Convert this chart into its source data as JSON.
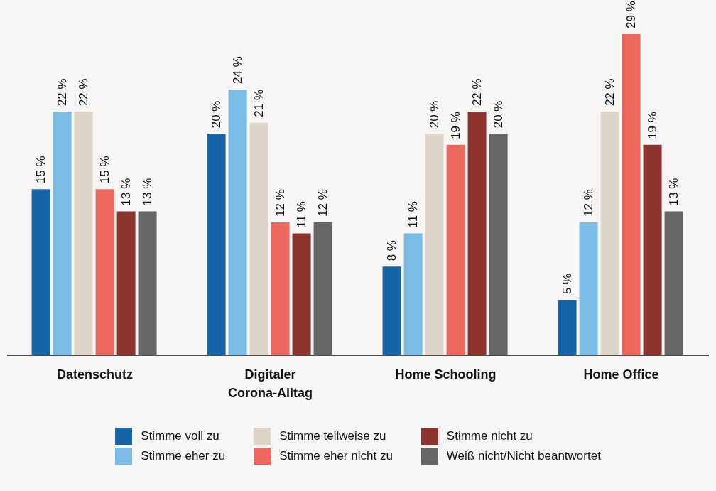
{
  "chart_data": {
    "type": "bar",
    "categories": [
      "Datenschutz",
      "Digitaler Corona-Alltag",
      "Home Schooling",
      "Home Office"
    ],
    "series": [
      {
        "name": "Stimme voll zu",
        "color": "#1565a8",
        "values": [
          15,
          20,
          8,
          5
        ],
        "value_labels": [
          "15 %",
          "20 %",
          "8 %",
          "5 %"
        ]
      },
      {
        "name": "Stimme eher zu",
        "color": "#7bbce6",
        "values": [
          22,
          24,
          11,
          12
        ],
        "value_labels": [
          "22 %",
          "24 %",
          "11 %",
          "12 %"
        ]
      },
      {
        "name": "Stimme teilweise zu",
        "color": "#ddd5c9",
        "values": [
          22,
          21,
          20,
          22
        ],
        "value_labels": [
          "22 %",
          "21 %",
          "20 %",
          "22 %"
        ]
      },
      {
        "name": "Stimme eher nicht zu",
        "color": "#ec675d",
        "values": [
          15,
          12,
          19,
          29
        ],
        "value_labels": [
          "15 %",
          "12 %",
          "19 %",
          "29 %"
        ]
      },
      {
        "name": "Stimme nicht zu",
        "color": "#8e3430",
        "values": [
          13,
          11,
          22,
          19
        ],
        "value_labels": [
          "13 %",
          "11 %",
          "22 %",
          "19 %"
        ]
      },
      {
        "name": "Weiß nicht/Nicht beantwortet",
        "color": "#666666",
        "values": [
          13,
          12,
          20,
          13
        ],
        "value_labels": [
          "13 %",
          "12 %",
          "20 %",
          "13 %"
        ]
      }
    ],
    "grid": false,
    "legend": "bottom"
  }
}
